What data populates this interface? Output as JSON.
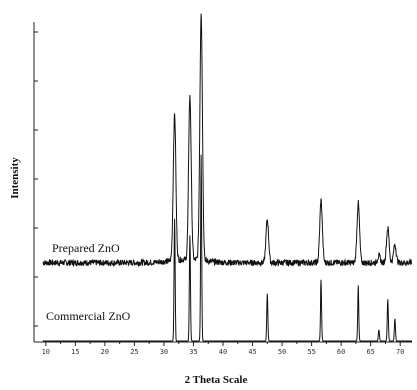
{
  "chart_data": {
    "type": "line",
    "title": "",
    "xlabel": "2 Theta Scale",
    "ylabel": "Intensity",
    "xlim": [
      8,
      72
    ],
    "x_ticks": [
      "10",
      "15",
      "20",
      "25",
      "30",
      "35",
      "40",
      "45",
      "50",
      "55",
      "60",
      "65",
      "70"
    ],
    "y_ticks_labeled": false,
    "grid": false,
    "legend": "none",
    "series": [
      {
        "name": "Prepared ZnO",
        "baseline": 5.5,
        "peaks": [
          {
            "x": 31.8,
            "y": 58
          },
          {
            "x": 34.4,
            "y": 64
          },
          {
            "x": 36.3,
            "y": 95
          },
          {
            "x": 47.5,
            "y": 21
          },
          {
            "x": 56.6,
            "y": 28
          },
          {
            "x": 62.9,
            "y": 27
          },
          {
            "x": 66.4,
            "y": 8
          },
          {
            "x": 67.9,
            "y": 18
          },
          {
            "x": 69.1,
            "y": 12
          }
        ]
      },
      {
        "name": "Commercial ZnO",
        "baseline": 0,
        "peaks": [
          {
            "x": 31.8,
            "y": 44
          },
          {
            "x": 34.4,
            "y": 38
          },
          {
            "x": 36.3,
            "y": 67
          },
          {
            "x": 47.5,
            "y": 17
          },
          {
            "x": 56.6,
            "y": 22
          },
          {
            "x": 62.9,
            "y": 20
          },
          {
            "x": 66.4,
            "y": 4
          },
          {
            "x": 67.9,
            "y": 15
          },
          {
            "x": 69.1,
            "y": 8
          }
        ]
      }
    ]
  }
}
